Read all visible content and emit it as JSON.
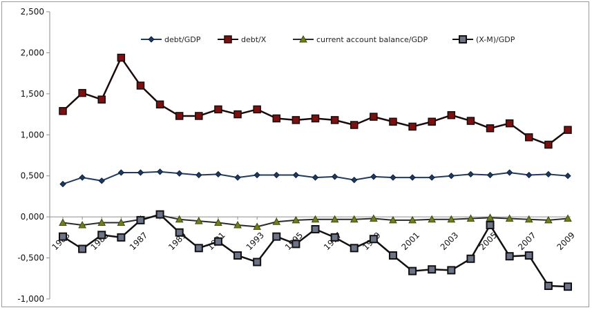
{
  "chart_data": {
    "type": "line",
    "title": "",
    "xlabel": "",
    "ylabel": "",
    "ylim": [
      -1.0,
      2.5
    ],
    "y_ticks": [
      "2,500",
      "2,000",
      "1,500",
      "1,000",
      "0,500",
      "0,000",
      "-0,500",
      "-1,000"
    ],
    "y_tick_values": [
      2.5,
      2.0,
      1.5,
      1.0,
      0.5,
      0.0,
      -0.5,
      -1.0
    ],
    "x": [
      1983,
      1984,
      1985,
      1986,
      1987,
      1988,
      1989,
      1990,
      1991,
      1992,
      1993,
      1994,
      1995,
      1996,
      1997,
      1998,
      1999,
      2000,
      2001,
      2002,
      2003,
      2004,
      2005,
      2006,
      2007,
      2008,
      2009
    ],
    "x_tick_labels": [
      "1983",
      "1985",
      "1987",
      "1989",
      "1991",
      "1993",
      "1995",
      "1997",
      "1999",
      "2001",
      "2003",
      "2005",
      "2007",
      "2009"
    ],
    "grid": false,
    "legend_position": "top",
    "series": [
      {
        "name": "debt/GDP",
        "color": "#1f3a5f",
        "marker": "diamond",
        "values": [
          0.4,
          0.48,
          0.44,
          0.54,
          0.54,
          0.55,
          0.53,
          0.51,
          0.52,
          0.48,
          0.51,
          0.51,
          0.51,
          0.48,
          0.49,
          0.45,
          0.49,
          0.48,
          0.48,
          0.48,
          0.5,
          0.52,
          0.51,
          0.54,
          0.51,
          0.52,
          0.5
        ]
      },
      {
        "name": "debt/X",
        "color": "#1a0a0a",
        "marker": "square",
        "marker_fill": "#7a1010",
        "values": [
          1.29,
          1.51,
          1.43,
          1.94,
          1.6,
          1.37,
          1.23,
          1.23,
          1.31,
          1.25,
          1.31,
          1.2,
          1.18,
          1.2,
          1.18,
          1.12,
          1.22,
          1.16,
          1.1,
          1.16,
          1.24,
          1.17,
          1.08,
          1.14,
          0.97,
          0.88,
          1.06
        ]
      },
      {
        "name": "current account balance/GDP",
        "color": "#2a2a2a",
        "marker": "triangle",
        "marker_fill": "#6f7f1a",
        "values": [
          -0.07,
          -0.1,
          -0.07,
          -0.07,
          -0.03,
          0.02,
          -0.03,
          -0.05,
          -0.07,
          -0.1,
          -0.12,
          -0.06,
          -0.04,
          -0.03,
          -0.03,
          -0.03,
          -0.02,
          -0.04,
          -0.04,
          -0.03,
          -0.03,
          -0.02,
          -0.01,
          -0.02,
          -0.03,
          -0.04,
          -0.02
        ]
      },
      {
        "name": "(X-M)/GDP",
        "color": "#111111",
        "marker": "open-square",
        "marker_fill": "#6e7487",
        "values": [
          -0.24,
          -0.39,
          -0.22,
          -0.25,
          -0.04,
          0.03,
          -0.19,
          -0.38,
          -0.3,
          -0.47,
          -0.55,
          -0.24,
          -0.33,
          -0.15,
          -0.25,
          -0.38,
          -0.27,
          -0.47,
          -0.66,
          -0.64,
          -0.65,
          -0.51,
          -0.1,
          -0.48,
          -0.47,
          -0.84,
          -0.85
        ]
      }
    ]
  }
}
